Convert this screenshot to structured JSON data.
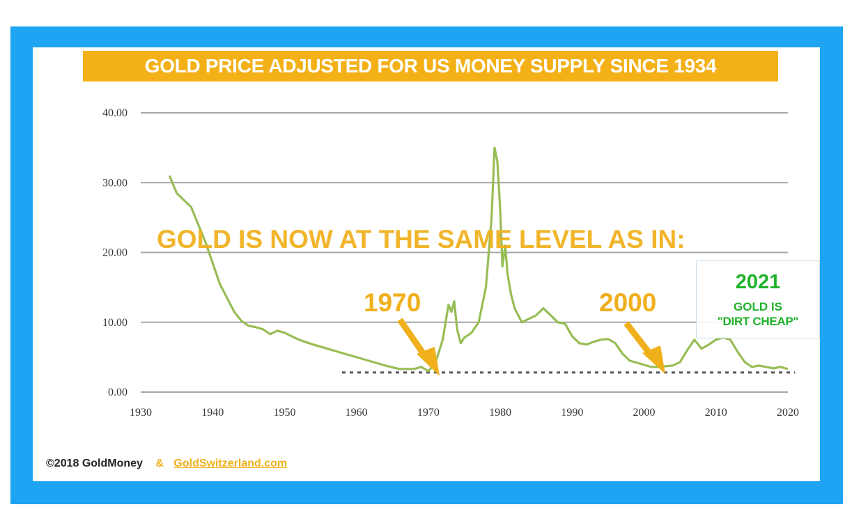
{
  "title": "GOLD PRICE ADJUSTED FOR US MONEY SUPPLY SINCE 1934",
  "headline": "GOLD IS NOW AT THE SAME LEVEL AS IN:",
  "annotations": {
    "year_1970": "1970",
    "year_2000": "2000",
    "callout": {
      "year": "2021",
      "line1": "GOLD IS",
      "line2": "\"DIRT CHEAP\""
    }
  },
  "footer": {
    "copyright": "©2018 GoldMoney",
    "amp": "&",
    "link": "GoldSwitzerland.com"
  },
  "colors": {
    "frame": "#1ea4f2",
    "banner": "#f3b117",
    "accent": "#f0b01c",
    "line": "#98bd55",
    "callout_text": "#1fb22a",
    "grid": "#a6a6a6"
  },
  "chart_data": {
    "type": "line",
    "title": "GOLD PRICE ADJUSTED FOR US MONEY SUPPLY SINCE 1934",
    "xlabel": "",
    "ylabel": "",
    "xlim": [
      1930,
      2020
    ],
    "ylim": [
      0,
      40
    ],
    "x_ticks": [
      "1930",
      "1940",
      "1950",
      "1960",
      "1970",
      "1980",
      "1990",
      "2000",
      "2010",
      "2020"
    ],
    "y_ticks": [
      "0.00",
      "10.00",
      "20.00",
      "30.00",
      "40.00"
    ],
    "grid": true,
    "reference_level": {
      "value": 2.8,
      "x_start": 1958,
      "x_end": 2021,
      "style": "dotted"
    },
    "series": [
      {
        "name": "Gold price adjusted for US money supply",
        "x": [
          1934,
          1935,
          1936,
          1937,
          1938,
          1939,
          1940,
          1941,
          1942,
          1943,
          1944,
          1945,
          1946,
          1947,
          1948,
          1949,
          1950,
          1952,
          1954,
          1956,
          1958,
          1960,
          1962,
          1964,
          1966,
          1968,
          1969,
          1970,
          1971,
          1972,
          1972.8,
          1973.2,
          1973.6,
          1974,
          1974.5,
          1975,
          1976,
          1977,
          1978,
          1978.8,
          1979.2,
          1979.6,
          1980,
          1980.3,
          1980.7,
          1981,
          1981.5,
          1982,
          1983,
          1984,
          1985,
          1986,
          1987,
          1988,
          1989,
          1990,
          1991,
          1992,
          1993,
          1994,
          1995,
          1996,
          1997,
          1998,
          1999,
          2000,
          2001,
          2002,
          2003,
          2004,
          2005,
          2006,
          2007,
          2008,
          2009,
          2010,
          2011,
          2012,
          2013,
          2014,
          2015,
          2016,
          2017,
          2018,
          2019,
          2020
        ],
        "values": [
          31.0,
          28.5,
          27.5,
          26.5,
          24.0,
          21.5,
          18.5,
          15.5,
          13.5,
          11.5,
          10.2,
          9.5,
          9.3,
          9.0,
          8.3,
          8.8,
          8.5,
          7.5,
          6.8,
          6.2,
          5.6,
          5.0,
          4.4,
          3.8,
          3.3,
          3.3,
          3.6,
          3.0,
          4.2,
          7.5,
          12.5,
          11.5,
          13.0,
          9.0,
          7.0,
          7.8,
          8.5,
          10.0,
          15.0,
          25.0,
          35.0,
          33.0,
          26.0,
          18.0,
          21.0,
          17.0,
          14.0,
          12.0,
          10.0,
          10.5,
          11.0,
          12.0,
          11.0,
          10.0,
          9.8,
          8.0,
          7.0,
          6.8,
          7.2,
          7.5,
          7.6,
          7.0,
          5.5,
          4.5,
          4.2,
          3.9,
          3.6,
          3.6,
          3.7,
          3.8,
          4.3,
          6.0,
          7.5,
          6.2,
          6.8,
          7.5,
          7.8,
          7.5,
          5.8,
          4.3,
          3.6,
          3.8,
          3.6,
          3.4,
          3.6,
          3.3
        ]
      }
    ]
  }
}
